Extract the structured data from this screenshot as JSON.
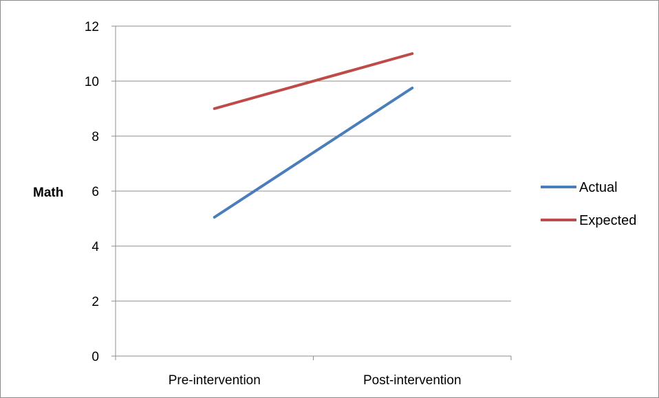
{
  "chart_data": {
    "type": "line",
    "title": "",
    "xlabel": "",
    "ylabel": "Math",
    "categories": [
      "Pre-intervention",
      "Post-intervention"
    ],
    "ylim": [
      0,
      12
    ],
    "yticks": [
      "0",
      "2",
      "4",
      "6",
      "8",
      "10",
      "12"
    ],
    "grid": true,
    "legend_position": "right",
    "series": [
      {
        "name": "Actual",
        "values": [
          5.05,
          9.75
        ],
        "color": "#4a7ebb"
      },
      {
        "name": "Expected",
        "values": [
          9.0,
          11.0
        ],
        "color": "#be4b48"
      }
    ]
  }
}
